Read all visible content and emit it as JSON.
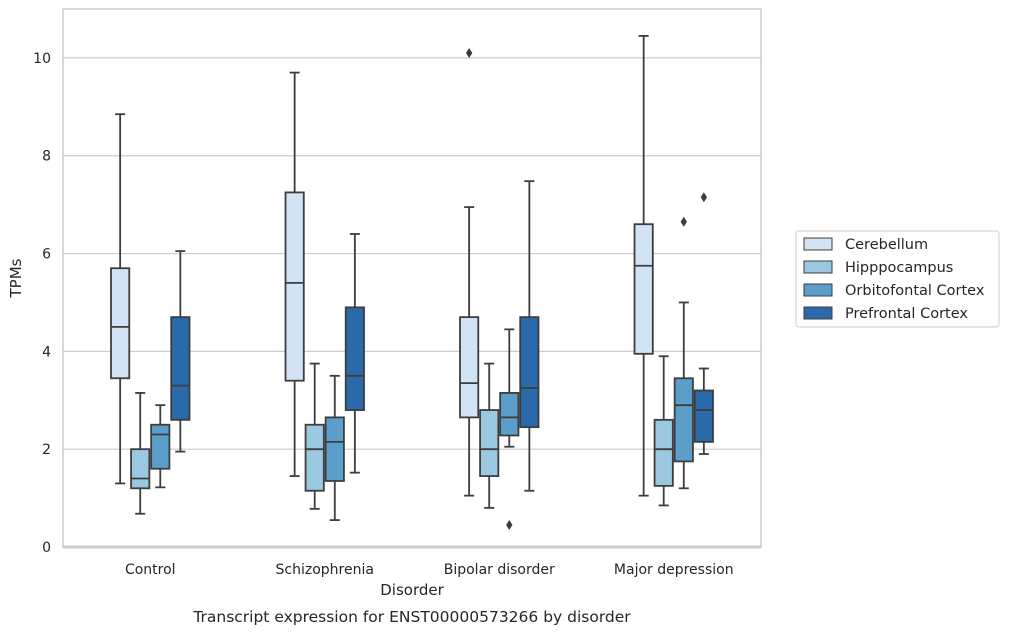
{
  "chart_data": {
    "type": "box",
    "xlabel": "Disorder",
    "ylabel": "TPMs",
    "caption": "Transcript expression for ENST00000573266 by disorder",
    "ylim": [
      0,
      11
    ],
    "yticks": [
      0,
      2,
      4,
      6,
      8,
      10
    ],
    "grid": true,
    "legend_position": "right",
    "categories": [
      "Control",
      "Schizophrenia",
      "Bipolar disorder",
      "Major depression"
    ],
    "series": [
      {
        "name": "Cerebellum",
        "color": "#d2e3f3",
        "boxes": [
          {
            "whisker_low": 1.3,
            "q1": 3.45,
            "median": 4.5,
            "q3": 5.7,
            "whisker_high": 8.85,
            "outliers": []
          },
          {
            "whisker_low": 1.45,
            "q1": 3.4,
            "median": 5.4,
            "q3": 7.25,
            "whisker_high": 9.7,
            "outliers": []
          },
          {
            "whisker_low": 1.05,
            "q1": 2.65,
            "median": 3.35,
            "q3": 4.7,
            "whisker_high": 6.95,
            "outliers": [
              10.1
            ]
          },
          {
            "whisker_low": 1.05,
            "q1": 3.95,
            "median": 5.75,
            "q3": 6.6,
            "whisker_high": 10.45,
            "outliers": []
          }
        ]
      },
      {
        "name": "Hipppocampus",
        "color": "#9ac8e0",
        "boxes": [
          {
            "whisker_low": 0.68,
            "q1": 1.2,
            "median": 1.4,
            "q3": 2.0,
            "whisker_high": 3.15,
            "outliers": []
          },
          {
            "whisker_low": 0.78,
            "q1": 1.15,
            "median": 2.0,
            "q3": 2.5,
            "whisker_high": 3.75,
            "outliers": []
          },
          {
            "whisker_low": 0.8,
            "q1": 1.45,
            "median": 2.0,
            "q3": 2.8,
            "whisker_high": 3.75,
            "outliers": []
          },
          {
            "whisker_low": 0.85,
            "q1": 1.25,
            "median": 2.0,
            "q3": 2.6,
            "whisker_high": 3.9,
            "outliers": []
          }
        ]
      },
      {
        "name": "Orbitofontal Cortex",
        "color": "#5b9ec9",
        "boxes": [
          {
            "whisker_low": 1.22,
            "q1": 1.6,
            "median": 2.3,
            "q3": 2.5,
            "whisker_high": 2.9,
            "outliers": []
          },
          {
            "whisker_low": 0.55,
            "q1": 1.35,
            "median": 2.15,
            "q3": 2.65,
            "whisker_high": 3.5,
            "outliers": []
          },
          {
            "whisker_low": 2.05,
            "q1": 2.28,
            "median": 2.65,
            "q3": 3.15,
            "whisker_high": 4.45,
            "outliers": [
              0.45
            ]
          },
          {
            "whisker_low": 1.2,
            "q1": 1.75,
            "median": 2.9,
            "q3": 3.45,
            "whisker_high": 5.0,
            "outliers": [
              6.65
            ]
          }
        ]
      },
      {
        "name": "Prefrontal Cortex",
        "color": "#2a6aab",
        "boxes": [
          {
            "whisker_low": 1.95,
            "q1": 2.6,
            "median": 3.3,
            "q3": 4.7,
            "whisker_high": 6.05,
            "outliers": []
          },
          {
            "whisker_low": 1.52,
            "q1": 2.8,
            "median": 3.5,
            "q3": 4.9,
            "whisker_high": 6.4,
            "outliers": []
          },
          {
            "whisker_low": 1.15,
            "q1": 2.45,
            "median": 3.25,
            "q3": 4.7,
            "whisker_high": 7.48,
            "outliers": []
          },
          {
            "whisker_low": 1.9,
            "q1": 2.15,
            "median": 2.8,
            "q3": 3.2,
            "whisker_high": 3.65,
            "outliers": [
              7.15
            ]
          }
        ]
      }
    ]
  }
}
